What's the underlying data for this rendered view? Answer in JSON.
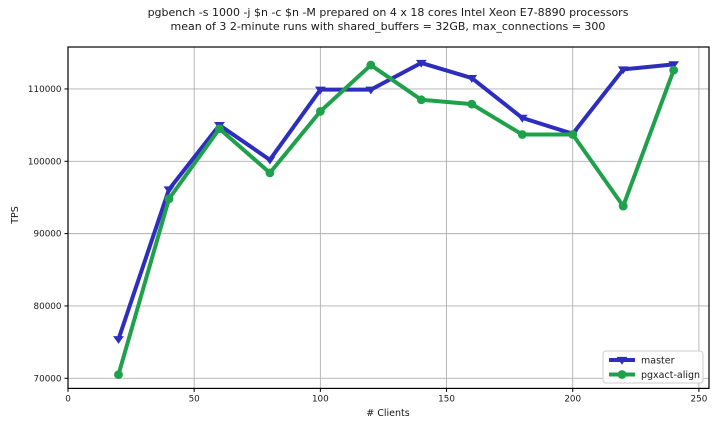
{
  "title": {
    "line1": "pgbench -s 1000 -j $n -c $n -M prepared on 4 x 18 cores Intel Xeon E7-8890 processors",
    "line2": "mean of 3 2-minute runs with shared_buffers = 32GB, max_connections = 300"
  },
  "chart_data": {
    "type": "line",
    "x": [
      20,
      40,
      60,
      80,
      100,
      120,
      140,
      160,
      180,
      200,
      220,
      240
    ],
    "series": [
      {
        "name": "master",
        "color": "#2d2dbe",
        "marker": "triangle-down",
        "values": [
          75400,
          96100,
          105000,
          100200,
          109900,
          109900,
          113600,
          111500,
          106000,
          103800,
          112700,
          113400
        ]
      },
      {
        "name": "pgxact-align",
        "color": "#1fa14b",
        "marker": "circle",
        "values": [
          70500,
          94800,
          104500,
          98400,
          106900,
          113300,
          108500,
          107900,
          103700,
          103700,
          93800,
          112600
        ]
      }
    ],
    "xlabel": "# Clients",
    "ylabel": "TPS",
    "xlim": [
      0,
      254
    ],
    "ylim": [
      68600,
      115800
    ],
    "xticks": [
      0,
      50,
      100,
      150,
      200,
      250
    ],
    "yticks": [
      70000,
      80000,
      90000,
      100000,
      110000
    ],
    "grid": true,
    "legend_position": "lower right",
    "line_width": 4
  },
  "colors": {
    "grid": "#b0b0b0",
    "spine": "#000000",
    "legend_border": "#cccccc",
    "legend_bg": "#ffffff",
    "text": "#1a1a1a"
  }
}
